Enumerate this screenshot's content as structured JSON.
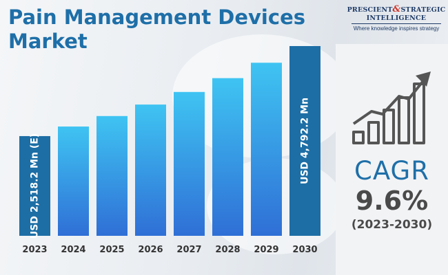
{
  "title": "Pain Management Devices Market",
  "title_lines": [
    "Pain Management Devices",
    "Market"
  ],
  "logo": {
    "line1_left": "PRESCIENT",
    "line1_amp": "&",
    "line1_right": "STRATEGIC",
    "line2": "INTELLIGENCE",
    "tagline": "Where knowledge inspires strategy"
  },
  "cagr": {
    "label": "CAGR",
    "value": "9.6%",
    "period": "(2023-2030)",
    "icon": "growth-bar-chart-icon"
  },
  "colors": {
    "title": "#1e6fa8",
    "highlight_bar": "#1d6ea5",
    "bar_top": "#3fc4f2",
    "bar_bottom": "#2f6fd6",
    "axis_label": "#333333"
  },
  "chart_data": {
    "type": "bar",
    "categories": [
      "2023",
      "2024",
      "2025",
      "2026",
      "2027",
      "2028",
      "2029",
      "2030"
    ],
    "values": [
      2518.2,
      2760,
      3025,
      3315,
      3633,
      3982,
      4371,
      4792.2
    ],
    "unit": "USD Mn",
    "data_labels": {
      "0": "USD 2,518.2 Mn (E)",
      "7": "USD 4,792.2 Mn"
    },
    "highlighted": [
      0,
      7
    ],
    "ylim": [
      0,
      4792.2
    ],
    "grid": false,
    "legend": "none"
  }
}
